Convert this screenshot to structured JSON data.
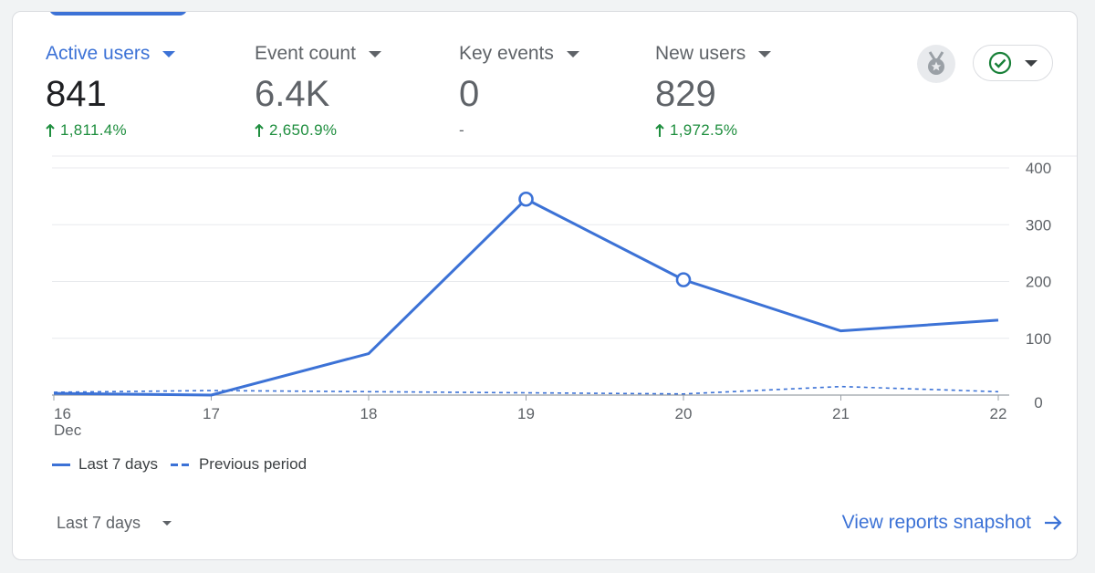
{
  "metrics": [
    {
      "label": "Active users",
      "value": "841",
      "change": "1,811.4%",
      "direction": "up",
      "active": true
    },
    {
      "label": "Event count",
      "value": "6.4K",
      "change": "2,650.9%",
      "direction": "up",
      "active": false
    },
    {
      "label": "Key events",
      "value": "0",
      "change": "-",
      "direction": "none",
      "active": false
    },
    {
      "label": "New users",
      "value": "829",
      "change": "1,972.5%",
      "direction": "up",
      "active": false
    }
  ],
  "header_icons": {
    "badge": "medal-icon",
    "status": "check-circle-icon"
  },
  "chart_data": {
    "type": "line",
    "categories": [
      "16",
      "17",
      "18",
      "19",
      "20",
      "21",
      "22"
    ],
    "first_tick_sublabel": "Dec",
    "ylim": [
      0,
      400
    ],
    "yticks": [
      "0",
      "100",
      "200",
      "300",
      "400"
    ],
    "series": [
      {
        "name": "Last 7 days",
        "style": "solid",
        "values": [
          3,
          0,
          73,
          345,
          203,
          113,
          132
        ]
      },
      {
        "name": "Previous period",
        "style": "dashed",
        "values": [
          5,
          8,
          6,
          4,
          2,
          15,
          6
        ]
      }
    ],
    "highlighted_points": [
      3,
      4
    ]
  },
  "legend": {
    "current": "Last 7 days",
    "previous": "Previous period"
  },
  "footer": {
    "range_label": "Last 7 days",
    "view_link": "View reports snapshot"
  },
  "colors": {
    "accent": "#3c72d6",
    "positive": "#1e8e3e",
    "muted": "#5f6368"
  }
}
